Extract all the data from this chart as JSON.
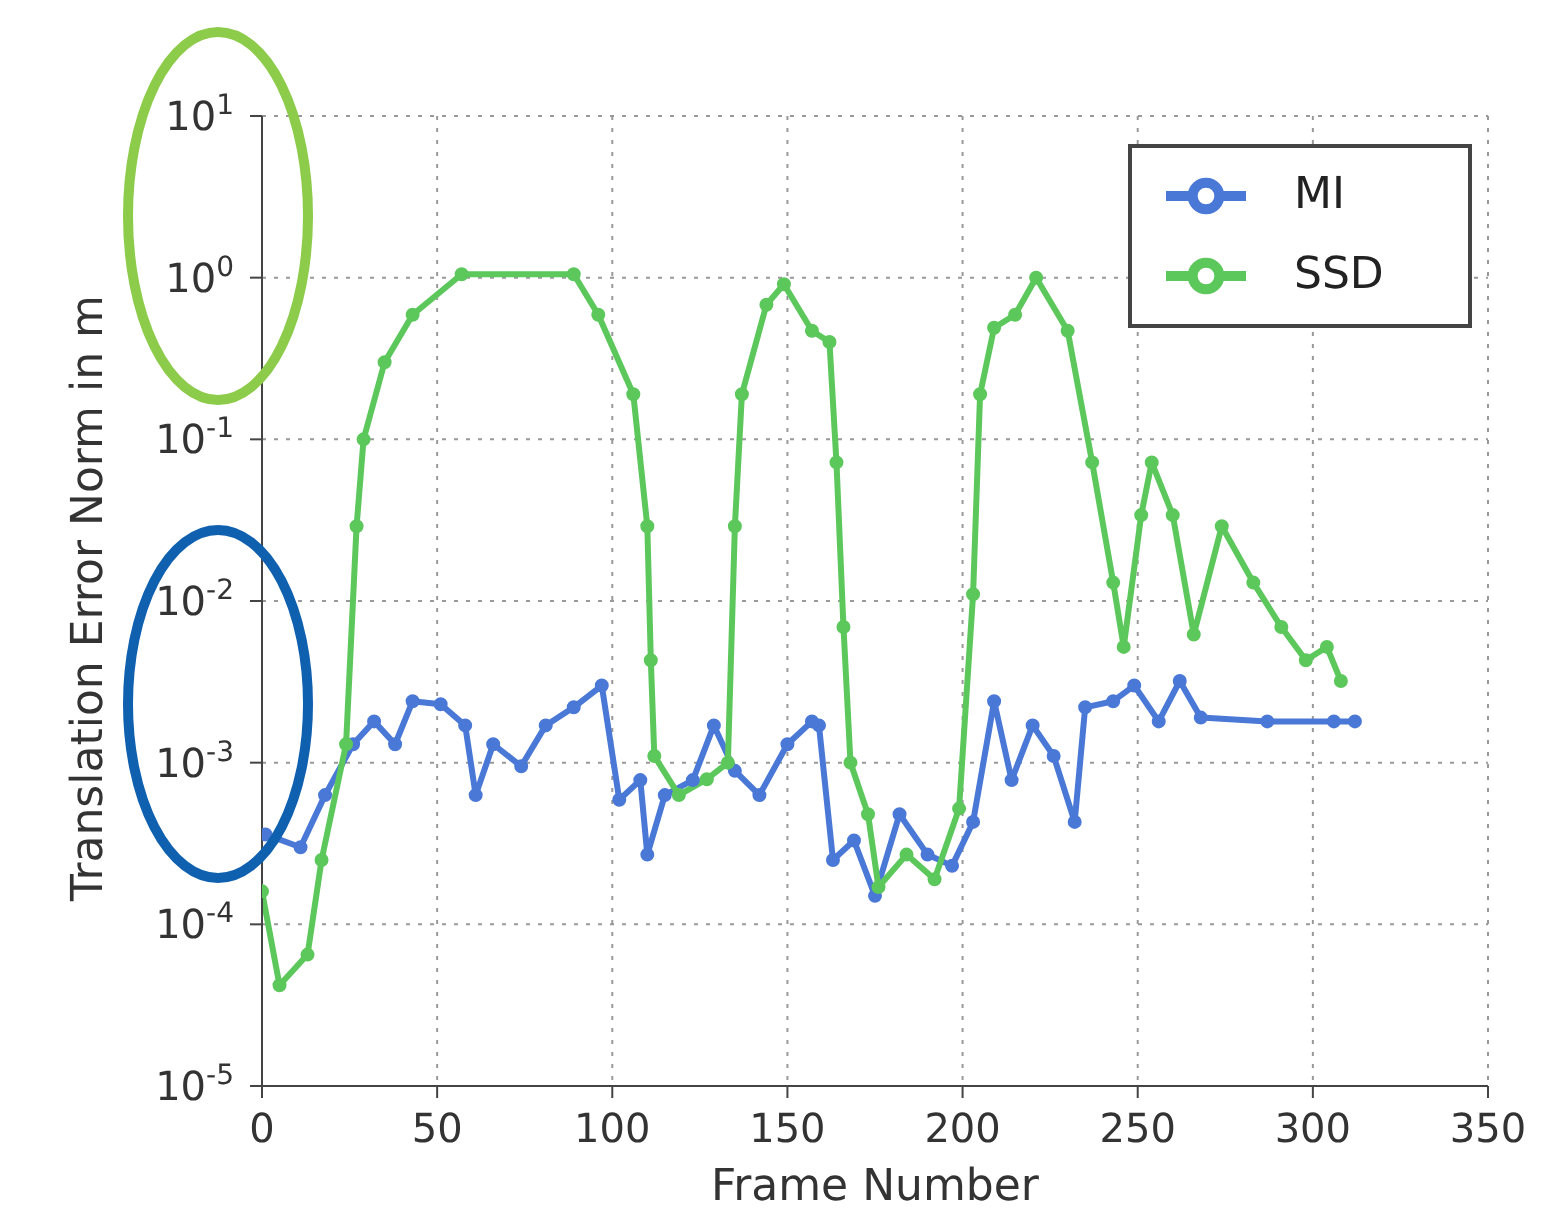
{
  "chart_data": {
    "type": "line",
    "xlabel": "Frame Number",
    "ylabel": "Translation Error Norm in m",
    "log": "y",
    "grid": true,
    "legend": "top right",
    "marker": "circle",
    "line_style": "solid",
    "xlim": [
      0,
      350
    ],
    "xticks": [
      0,
      50,
      100,
      150,
      200,
      250,
      300,
      350
    ],
    "ylim": [
      1e-05,
      10
    ],
    "yticks": [
      {
        "value": 1e-05,
        "label": "10$^{-5}$"
      },
      {
        "value": 0.0001,
        "label": "10$^{-4}$"
      },
      {
        "value": 0.001,
        "label": "10$^{-3}$"
      },
      {
        "value": 0.01,
        "label": "10$^{-2}$"
      },
      {
        "value": 0.1,
        "label": "10$^{-1}$"
      },
      {
        "value": 1,
        "label": "10$^{0}$"
      },
      {
        "value": 10,
        "label": "10$^{1}$"
      }
    ],
    "series": [
      {
        "name": "MI",
        "color": "#4a78d6",
        "x": [
          1,
          11,
          18,
          26,
          32,
          38,
          43,
          51,
          58,
          61,
          66,
          74,
          81,
          89,
          97,
          102,
          108,
          110,
          115,
          123,
          129,
          135,
          142,
          150,
          157,
          159,
          163,
          169,
          175,
          182,
          190,
          197,
          203,
          209,
          214,
          220,
          226,
          232,
          235,
          243,
          249,
          256,
          262,
          268,
          287,
          306,
          312
        ],
        "values": [
          0.00036,
          0.0003,
          0.00063,
          0.0013,
          0.0018,
          0.0013,
          0.0024,
          0.0023,
          0.0017,
          0.00063,
          0.0013,
          0.00095,
          0.0017,
          0.0022,
          0.003,
          0.00059,
          0.00078,
          0.00027,
          0.00063,
          0.00078,
          0.0017,
          0.00089,
          0.00063,
          0.0013,
          0.0018,
          0.0017,
          0.00025,
          0.00033,
          0.00015,
          0.00048,
          0.00027,
          0.00023,
          0.00043,
          0.0024,
          0.00078,
          0.0017,
          0.0011,
          0.00043,
          0.0022,
          0.0024,
          0.003,
          0.0018,
          0.0032,
          0.0019,
          0.0018,
          0.0018,
          0.0018
        ]
      },
      {
        "name": "SSD",
        "color": "#5cc85c",
        "x": [
          0,
          5,
          13,
          17,
          24,
          27,
          29,
          35,
          43,
          57,
          89,
          96,
          106,
          110,
          111,
          112,
          119,
          127,
          133,
          135,
          137,
          144,
          149,
          157,
          162,
          164,
          166,
          168,
          173,
          176,
          184,
          192,
          199,
          203,
          205,
          209,
          215,
          221,
          230,
          237,
          243,
          246,
          251,
          254,
          260,
          266,
          274,
          283,
          291,
          298,
          304,
          308
        ],
        "values": [
          0.00016,
          4.2e-05,
          6.5e-05,
          0.00025,
          0.0013,
          0.029,
          0.1,
          0.3,
          0.59,
          1.05,
          1.05,
          0.59,
          0.19,
          0.029,
          0.0043,
          0.0011,
          0.00063,
          0.00079,
          0.001,
          0.029,
          0.19,
          0.68,
          0.91,
          0.47,
          0.4,
          0.072,
          0.0069,
          0.001,
          0.00048,
          0.00017,
          0.00027,
          0.00019,
          0.00052,
          0.011,
          0.19,
          0.49,
          0.59,
          1,
          0.47,
          0.072,
          0.013,
          0.0052,
          0.034,
          0.072,
          0.034,
          0.0062,
          0.029,
          0.013,
          0.0069,
          0.0043,
          0.0052,
          0.0032
        ]
      }
    ]
  }
}
